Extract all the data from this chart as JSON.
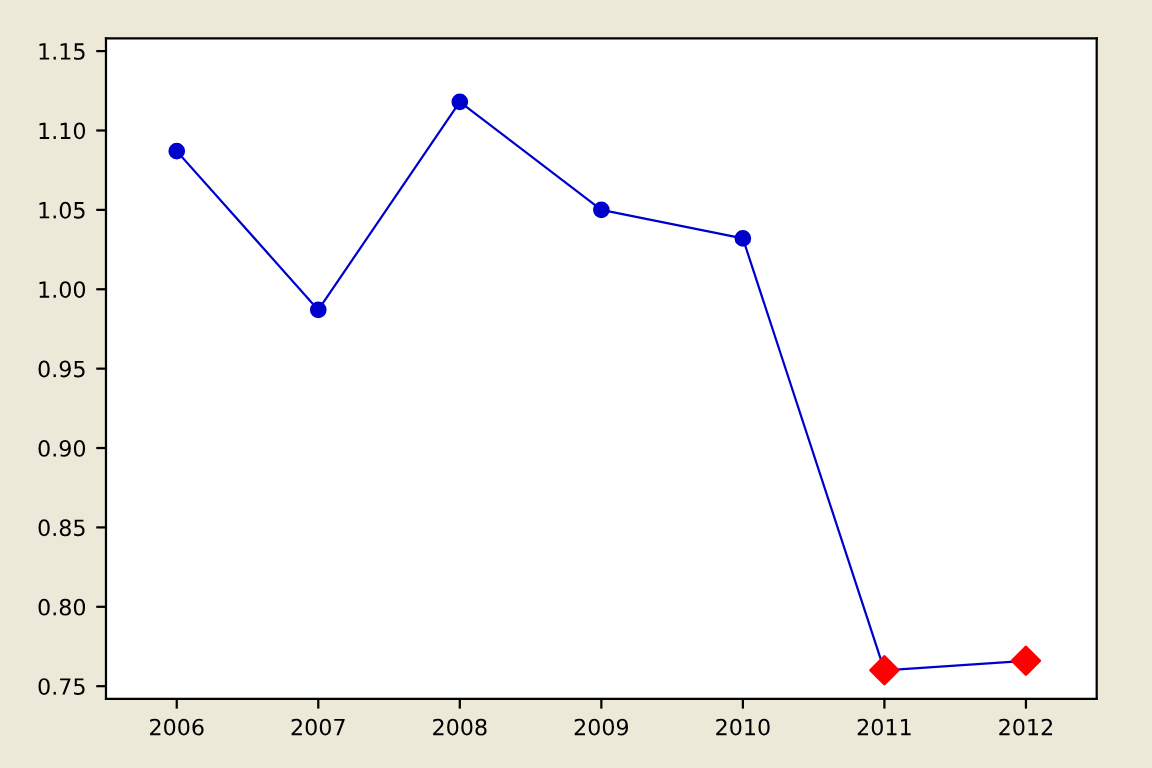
{
  "chart_data": {
    "type": "line",
    "categories": [
      "2006",
      "2007",
      "2008",
      "2009",
      "2010",
      "2011",
      "2012"
    ],
    "series": [
      {
        "color": "#0000cc",
        "marker": "none",
        "values": [
          1.087,
          0.987,
          1.118,
          1.05,
          1.032,
          0.76,
          0.766
        ]
      },
      {
        "type": "scatter",
        "color": "#0000cc",
        "marker": "circle",
        "values": [
          1.087,
          0.987,
          1.118,
          1.05,
          1.032,
          null,
          null
        ]
      },
      {
        "type": "scatter",
        "color": "#ff0000",
        "marker": "diamond",
        "values": [
          null,
          null,
          null,
          null,
          null,
          0.76,
          0.766
        ]
      }
    ],
    "ylim": [
      0.742,
      1.158
    ],
    "yticks": [
      {
        "value": 0.75,
        "label": "0.75"
      },
      {
        "value": 0.8,
        "label": "0.80"
      },
      {
        "value": 0.85,
        "label": "0.85"
      },
      {
        "value": 0.9,
        "label": "0.90"
      },
      {
        "value": 0.95,
        "label": "0.95"
      },
      {
        "value": 1.0,
        "label": "1.00"
      },
      {
        "value": 1.05,
        "label": "1.05"
      },
      {
        "value": 1.1,
        "label": "1.10"
      },
      {
        "value": 1.15,
        "label": "1.15"
      }
    ],
    "grid": false,
    "legend": false
  }
}
